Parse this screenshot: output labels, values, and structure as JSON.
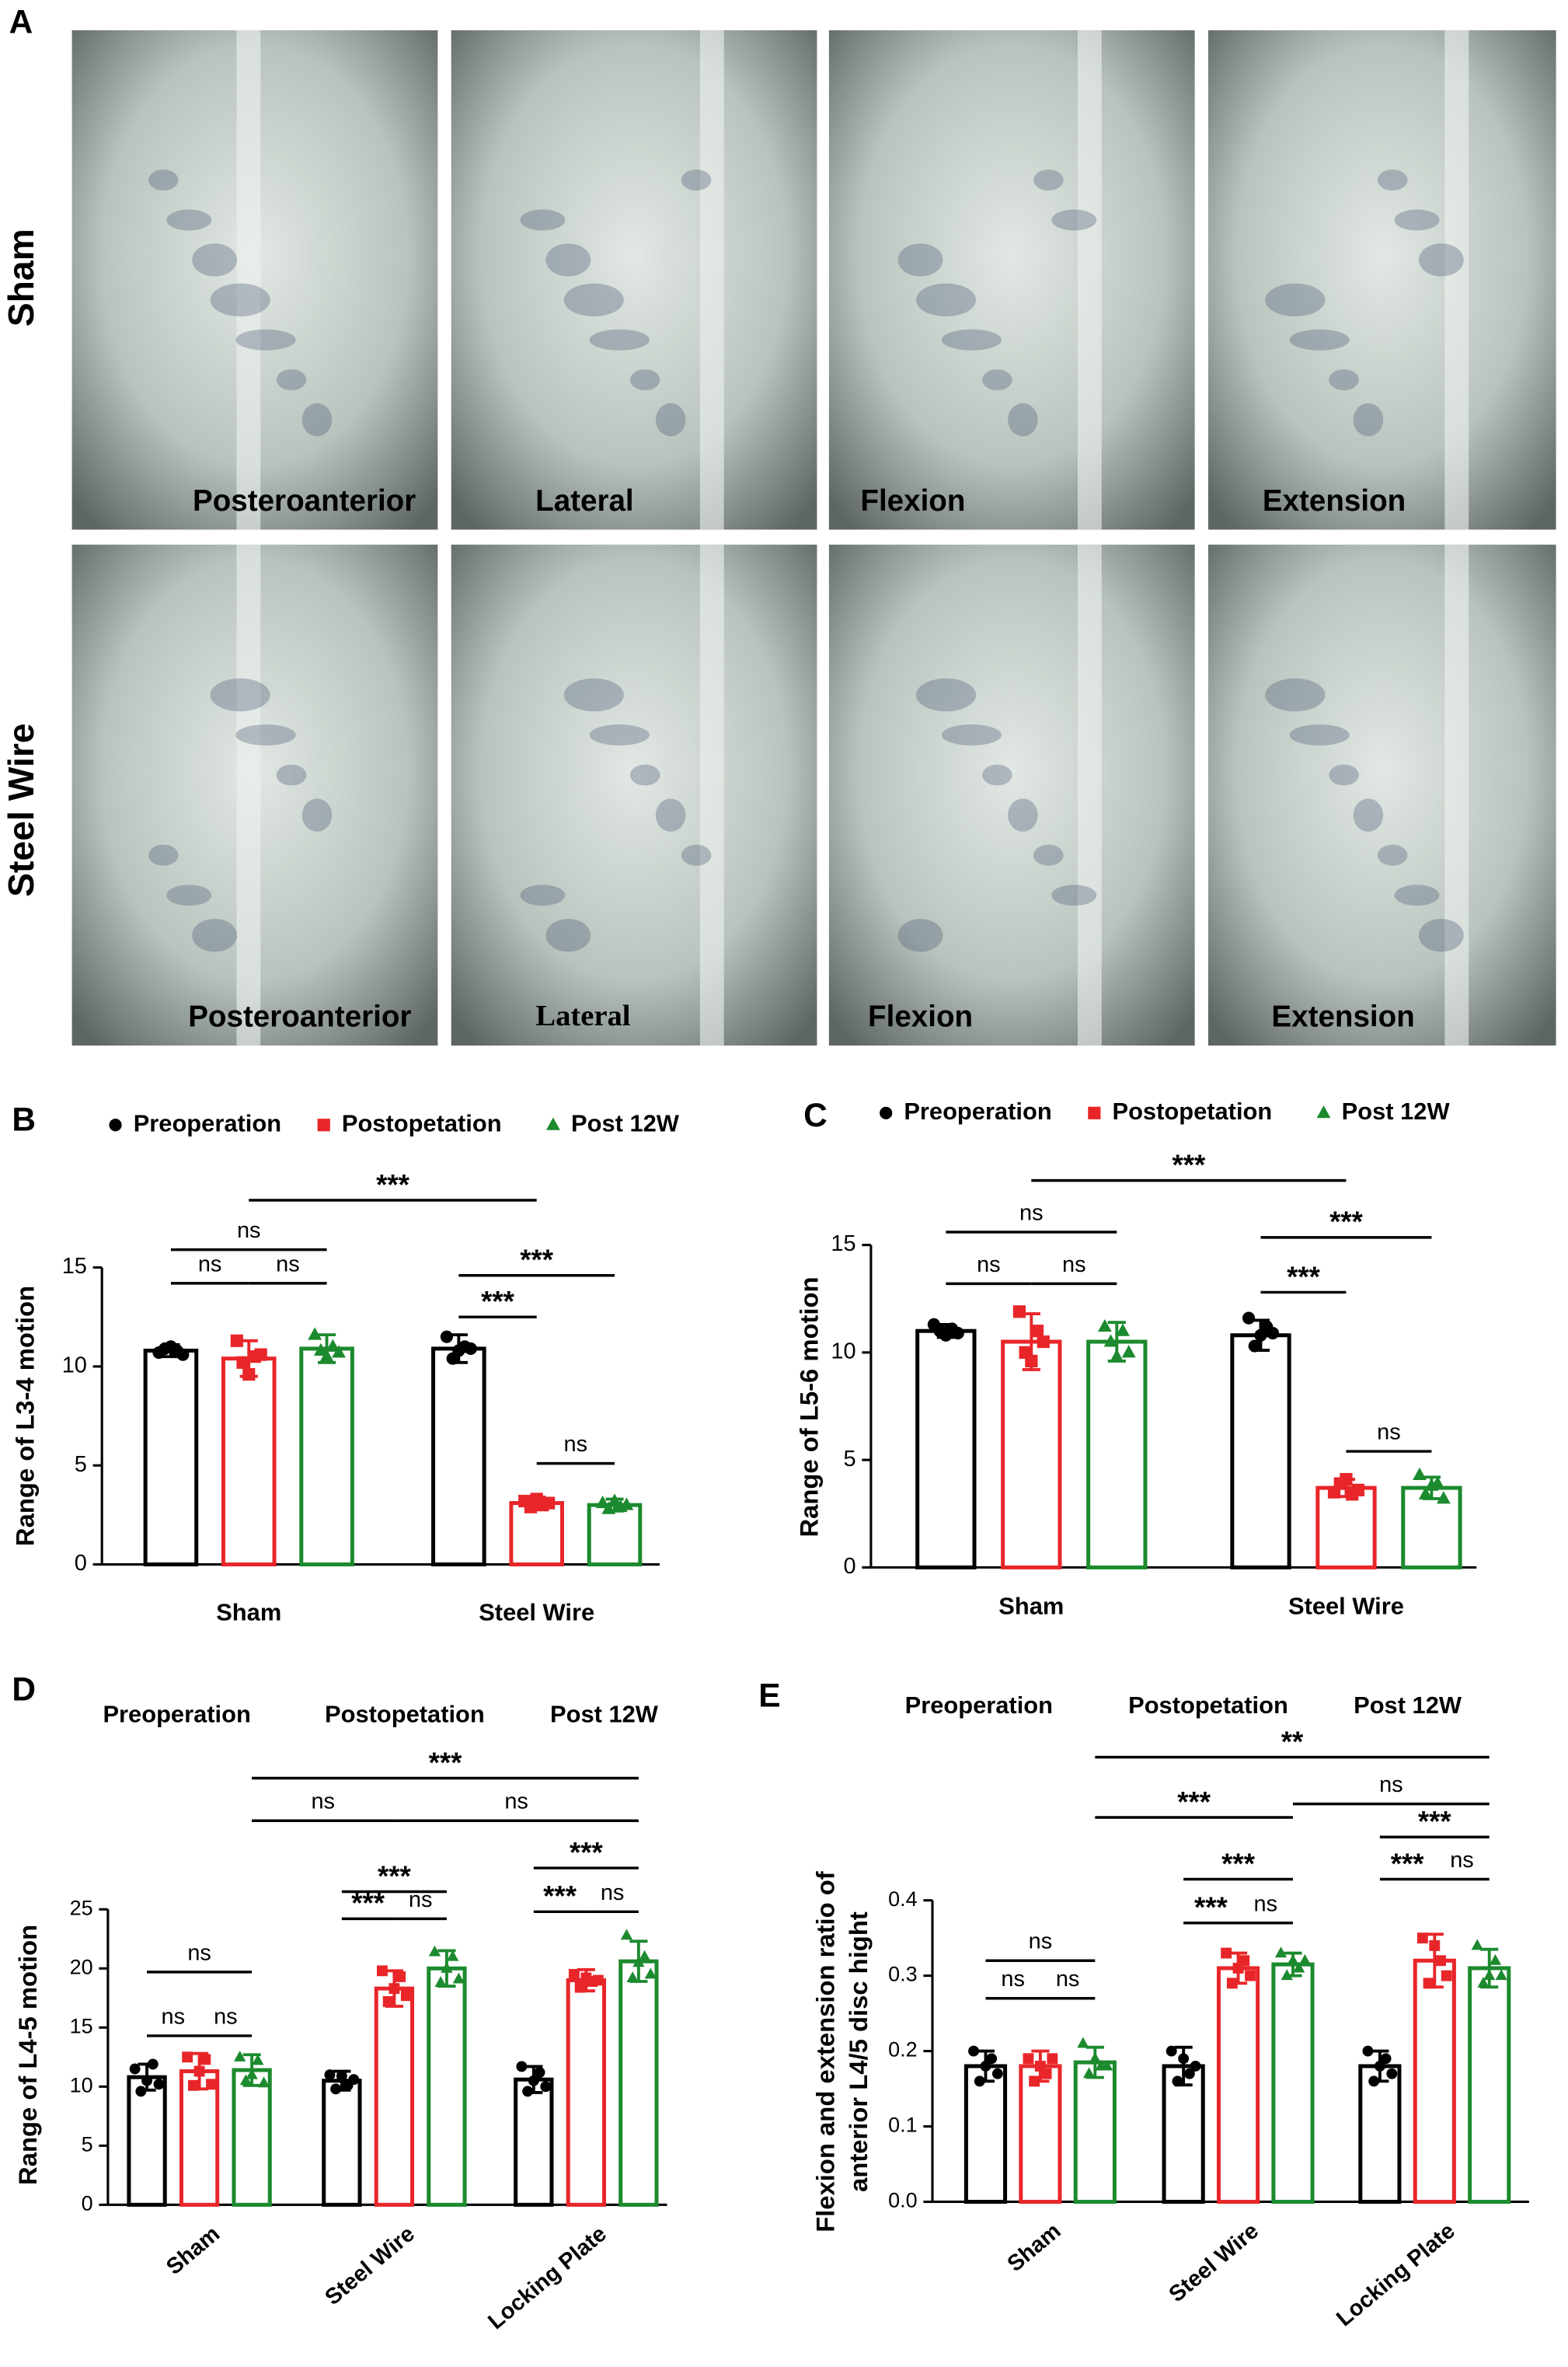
{
  "panel_a": {
    "label": "A",
    "rows": [
      {
        "name": "Sham",
        "views": [
          "Posteroanterior",
          "Lateral",
          "Flexion",
          "Extension"
        ]
      },
      {
        "name": "Steel Wire",
        "views": [
          "Posteroanterior",
          "Lateral",
          "Flexion",
          "Extension"
        ]
      }
    ]
  },
  "chart_data": [
    {
      "type": "bar",
      "panel": "B",
      "y_label": "Range of L3-4 motion",
      "categories": [
        "Sham",
        "Steel Wire"
      ],
      "ylim": [
        0,
        15
      ],
      "yticks": [
        0,
        5,
        10,
        15
      ],
      "legend_markers": true,
      "series": [
        {
          "name": "Preoperation",
          "color": "#000000",
          "marker": "circle",
          "values": [
            10.8,
            10.9
          ],
          "errors": [
            0.3,
            0.7
          ],
          "points": [
            [
              10.7,
              10.9,
              11.0,
              10.8,
              10.6
            ],
            [
              11.5,
              10.4,
              10.8,
              11.0,
              10.9
            ]
          ]
        },
        {
          "name": "Postopetation",
          "color": "#e8262a",
          "marker": "square",
          "values": [
            10.4,
            3.1
          ],
          "errors": [
            0.9,
            0.3
          ],
          "points": [
            [
              11.3,
              10.2,
              9.6,
              10.5,
              10.6
            ],
            [
              3.2,
              2.9,
              3.3,
              3.0,
              3.1
            ]
          ]
        },
        {
          "name": "Post 12W",
          "color": "#1c8a2e",
          "marker": "triangle",
          "values": [
            10.9,
            3.0
          ],
          "errors": [
            0.7,
            0.3
          ],
          "points": [
            [
              11.6,
              10.8,
              10.5,
              11.0,
              10.7
            ],
            [
              3.1,
              2.8,
              3.2,
              2.9,
              3.0
            ]
          ]
        }
      ],
      "annotations": [
        {
          "text": "ns",
          "from": [
            0,
            0
          ],
          "to": [
            0,
            2
          ],
          "y": 15.9
        },
        {
          "text": "ns",
          "from": [
            0,
            0
          ],
          "to": [
            0,
            1
          ],
          "y": 14.2
        },
        {
          "text": "ns",
          "from": [
            0,
            1
          ],
          "to": [
            0,
            2
          ],
          "y": 14.2
        },
        {
          "text": "***",
          "from": [
            0,
            1
          ],
          "to": [
            1,
            1
          ],
          "y": 18.4
        },
        {
          "text": "***",
          "from": [
            1,
            0
          ],
          "to": [
            1,
            2
          ],
          "y": 14.6
        },
        {
          "text": "***",
          "from": [
            1,
            0
          ],
          "to": [
            1,
            1
          ],
          "y": 12.5
        },
        {
          "text": "ns",
          "from": [
            1,
            1
          ],
          "to": [
            1,
            2
          ],
          "y": 5.1
        }
      ]
    },
    {
      "type": "bar",
      "panel": "C",
      "y_label": "Range of L5-6 motion",
      "categories": [
        "Sham",
        "Steel Wire"
      ],
      "ylim": [
        0,
        15
      ],
      "yticks": [
        0,
        5,
        10,
        15
      ],
      "legend_markers": true,
      "series": [
        {
          "name": "Preoperation",
          "color": "#000000",
          "marker": "circle",
          "values": [
            11.0,
            10.8
          ],
          "errors": [
            0.3,
            0.7
          ],
          "points": [
            [
              11.3,
              11.0,
              10.8,
              11.1,
              10.9
            ],
            [
              11.6,
              10.3,
              10.8,
              11.2,
              10.9
            ]
          ]
        },
        {
          "name": "Postopetation",
          "color": "#e8262a",
          "marker": "square",
          "values": [
            10.5,
            3.7
          ],
          "errors": [
            1.3,
            0.4
          ],
          "points": [
            [
              11.9,
              10.0,
              9.6,
              11.0,
              10.5
            ],
            [
              3.5,
              3.9,
              4.1,
              3.4,
              3.6
            ]
          ]
        },
        {
          "name": "Post 12W",
          "color": "#1c8a2e",
          "marker": "triangle",
          "values": [
            10.5,
            3.7
          ],
          "errors": [
            0.9,
            0.5
          ],
          "points": [
            [
              11.2,
              10.5,
              9.8,
              11.0,
              10.0
            ],
            [
              4.3,
              3.4,
              3.8,
              3.9,
              3.2
            ]
          ]
        }
      ],
      "annotations": [
        {
          "text": "ns",
          "from": [
            0,
            0
          ],
          "to": [
            0,
            2
          ],
          "y": 15.6
        },
        {
          "text": "ns",
          "from": [
            0,
            0
          ],
          "to": [
            0,
            1
          ],
          "y": 13.2
        },
        {
          "text": "ns",
          "from": [
            0,
            1
          ],
          "to": [
            0,
            2
          ],
          "y": 13.2
        },
        {
          "text": "***",
          "from": [
            0,
            1
          ],
          "to": [
            1,
            1
          ],
          "y": 18.0
        },
        {
          "text": "***",
          "from": [
            1,
            0
          ],
          "to": [
            1,
            2
          ],
          "y": 15.35
        },
        {
          "text": "***",
          "from": [
            1,
            0
          ],
          "to": [
            1,
            1
          ],
          "y": 12.8
        },
        {
          "text": "ns",
          "from": [
            1,
            1
          ],
          "to": [
            1,
            2
          ],
          "y": 5.4
        }
      ]
    },
    {
      "type": "bar",
      "panel": "D",
      "y_label": "Range of L4-5 motion",
      "categories": [
        "Sham",
        "Steel Wire",
        "Locking Plate"
      ],
      "ylim": [
        0,
        25
      ],
      "yticks": [
        0,
        5,
        10,
        15,
        20,
        25
      ],
      "legend_markers": false,
      "series": [
        {
          "name": "Preoperation",
          "color": "#000000",
          "marker": "circle",
          "values": [
            10.8,
            10.5,
            10.6
          ],
          "errors": [
            1.1,
            0.8,
            1.1
          ],
          "points": [
            [
              11.5,
              9.6,
              10.5,
              11.9,
              10.2
            ],
            [
              11.0,
              9.8,
              10.9,
              10.1,
              10.6
            ],
            [
              11.7,
              9.6,
              10.5,
              11.2,
              10.0
            ]
          ]
        },
        {
          "name": "Postopetation",
          "color": "#e8262a",
          "marker": "square",
          "values": [
            11.3,
            18.3,
            19.0
          ],
          "errors": [
            1.5,
            1.5,
            0.9
          ],
          "points": [
            [
              12.5,
              10.1,
              11.3,
              12.3,
              10.2
            ],
            [
              19.8,
              17.2,
              18.3,
              19.3,
              17.7
            ],
            [
              19.5,
              18.4,
              19.2,
              18.9,
              19.0
            ]
          ]
        },
        {
          "name": "Post 12W",
          "color": "#1c8a2e",
          "marker": "triangle",
          "values": [
            11.4,
            20.0,
            20.6
          ],
          "errors": [
            1.3,
            1.5,
            1.7
          ],
          "points": [
            [
              12.5,
              10.5,
              11.0,
              12.2,
              10.3
            ],
            [
              21.4,
              18.8,
              20.0,
              21.0,
              19.1
            ],
            [
              22.8,
              19.2,
              20.5,
              21.0,
              19.5
            ]
          ]
        }
      ],
      "annotations": [
        {
          "text": "ns",
          "from": [
            0,
            0
          ],
          "to": [
            0,
            2
          ],
          "y": 19.7
        },
        {
          "text": "ns",
          "from": [
            0,
            0
          ],
          "to": [
            0,
            1
          ],
          "y": 14.3
        },
        {
          "text": "ns",
          "from": [
            0,
            1
          ],
          "to": [
            0,
            2
          ],
          "y": 14.3
        },
        {
          "text": "***",
          "from": [
            1,
            0
          ],
          "to": [
            1,
            2
          ],
          "y": 26.5
        },
        {
          "text": "***",
          "from": [
            1,
            0
          ],
          "to": [
            1,
            1
          ],
          "y": 24.2
        },
        {
          "text": "ns",
          "from": [
            1,
            1
          ],
          "to": [
            1,
            2
          ],
          "y": 24.2
        },
        {
          "text": "***",
          "from": [
            2,
            0
          ],
          "to": [
            2,
            2
          ],
          "y": 28.5
        },
        {
          "text": "***",
          "from": [
            2,
            0
          ],
          "to": [
            2,
            1
          ],
          "y": 24.8
        },
        {
          "text": "ns",
          "from": [
            2,
            1
          ],
          "to": [
            2,
            2
          ],
          "y": 24.8
        },
        {
          "text": "ns",
          "from": [
            0,
            2
          ],
          "to": [
            1,
            1
          ],
          "y": 32.5
        },
        {
          "text": "ns",
          "from": [
            1,
            1
          ],
          "to": [
            2,
            2
          ],
          "y": 32.5
        },
        {
          "text": "***",
          "from": [
            0,
            2
          ],
          "to": [
            2,
            2
          ],
          "y": 36.1
        }
      ]
    },
    {
      "type": "bar",
      "panel": "E",
      "y_label": [
        "Flexion and extension ratio of",
        "anterior L4/5 disc hight"
      ],
      "categories": [
        "Sham",
        "Steel Wire",
        "Locking Plate"
      ],
      "ylim": [
        0,
        0.4
      ],
      "yticks": [
        {
          "value": 0,
          "label": "0.0"
        },
        0.1,
        0.2,
        0.3,
        0.4
      ],
      "legend_markers": false,
      "series": [
        {
          "name": "Preoperation",
          "color": "#000000",
          "marker": "circle",
          "values": [
            0.18,
            0.18,
            0.18
          ],
          "errors": [
            0.02,
            0.025,
            0.02
          ],
          "points": [
            [
              0.2,
              0.16,
              0.18,
              0.19,
              0.17
            ],
            [
              0.2,
              0.16,
              0.19,
              0.17,
              0.18
            ],
            [
              0.2,
              0.16,
              0.18,
              0.19,
              0.17
            ]
          ]
        },
        {
          "name": "Postopetation",
          "color": "#e8262a",
          "marker": "square",
          "values": [
            0.18,
            0.31,
            0.32
          ],
          "errors": [
            0.02,
            0.02,
            0.035
          ],
          "points": [
            [
              0.19,
              0.16,
              0.18,
              0.17,
              0.19
            ],
            [
              0.33,
              0.29,
              0.31,
              0.32,
              0.3
            ],
            [
              0.35,
              0.29,
              0.34,
              0.32,
              0.3
            ]
          ]
        },
        {
          "name": "Post 12W",
          "color": "#1c8a2e",
          "marker": "triangle",
          "values": [
            0.185,
            0.315,
            0.31
          ],
          "errors": [
            0.02,
            0.015,
            0.025
          ],
          "points": [
            [
              0.21,
              0.17,
              0.19,
              0.18,
              0.18
            ],
            [
              0.33,
              0.3,
              0.32,
              0.31,
              0.32
            ],
            [
              0.34,
              0.29,
              0.3,
              0.32,
              0.3
            ]
          ]
        }
      ],
      "annotations": [
        {
          "text": "ns",
          "from": [
            0,
            0
          ],
          "to": [
            0,
            2
          ],
          "y": 0.32
        },
        {
          "text": "ns",
          "from": [
            0,
            0
          ],
          "to": [
            0,
            1
          ],
          "y": 0.27
        },
        {
          "text": "ns",
          "from": [
            0,
            1
          ],
          "to": [
            0,
            2
          ],
          "y": 0.27
        },
        {
          "text": "***",
          "from": [
            1,
            0
          ],
          "to": [
            1,
            2
          ],
          "y": 0.428
        },
        {
          "text": "***",
          "from": [
            1,
            0
          ],
          "to": [
            1,
            1
          ],
          "y": 0.37
        },
        {
          "text": "ns",
          "from": [
            1,
            1
          ],
          "to": [
            1,
            2
          ],
          "y": 0.37
        },
        {
          "text": "***",
          "from": [
            2,
            0
          ],
          "to": [
            2,
            2
          ],
          "y": 0.484
        },
        {
          "text": "***",
          "from": [
            2,
            0
          ],
          "to": [
            2,
            1
          ],
          "y": 0.428
        },
        {
          "text": "ns",
          "from": [
            2,
            1
          ],
          "to": [
            2,
            2
          ],
          "y": 0.428
        },
        {
          "text": "***",
          "from": [
            0,
            2
          ],
          "to": [
            1,
            2
          ],
          "y": 0.51
        },
        {
          "text": "ns",
          "from": [
            1,
            2
          ],
          "to": [
            2,
            2
          ],
          "y": 0.528
        },
        {
          "text": "**",
          "from": [
            0,
            2
          ],
          "to": [
            2,
            2
          ],
          "y": 0.59
        }
      ]
    }
  ]
}
